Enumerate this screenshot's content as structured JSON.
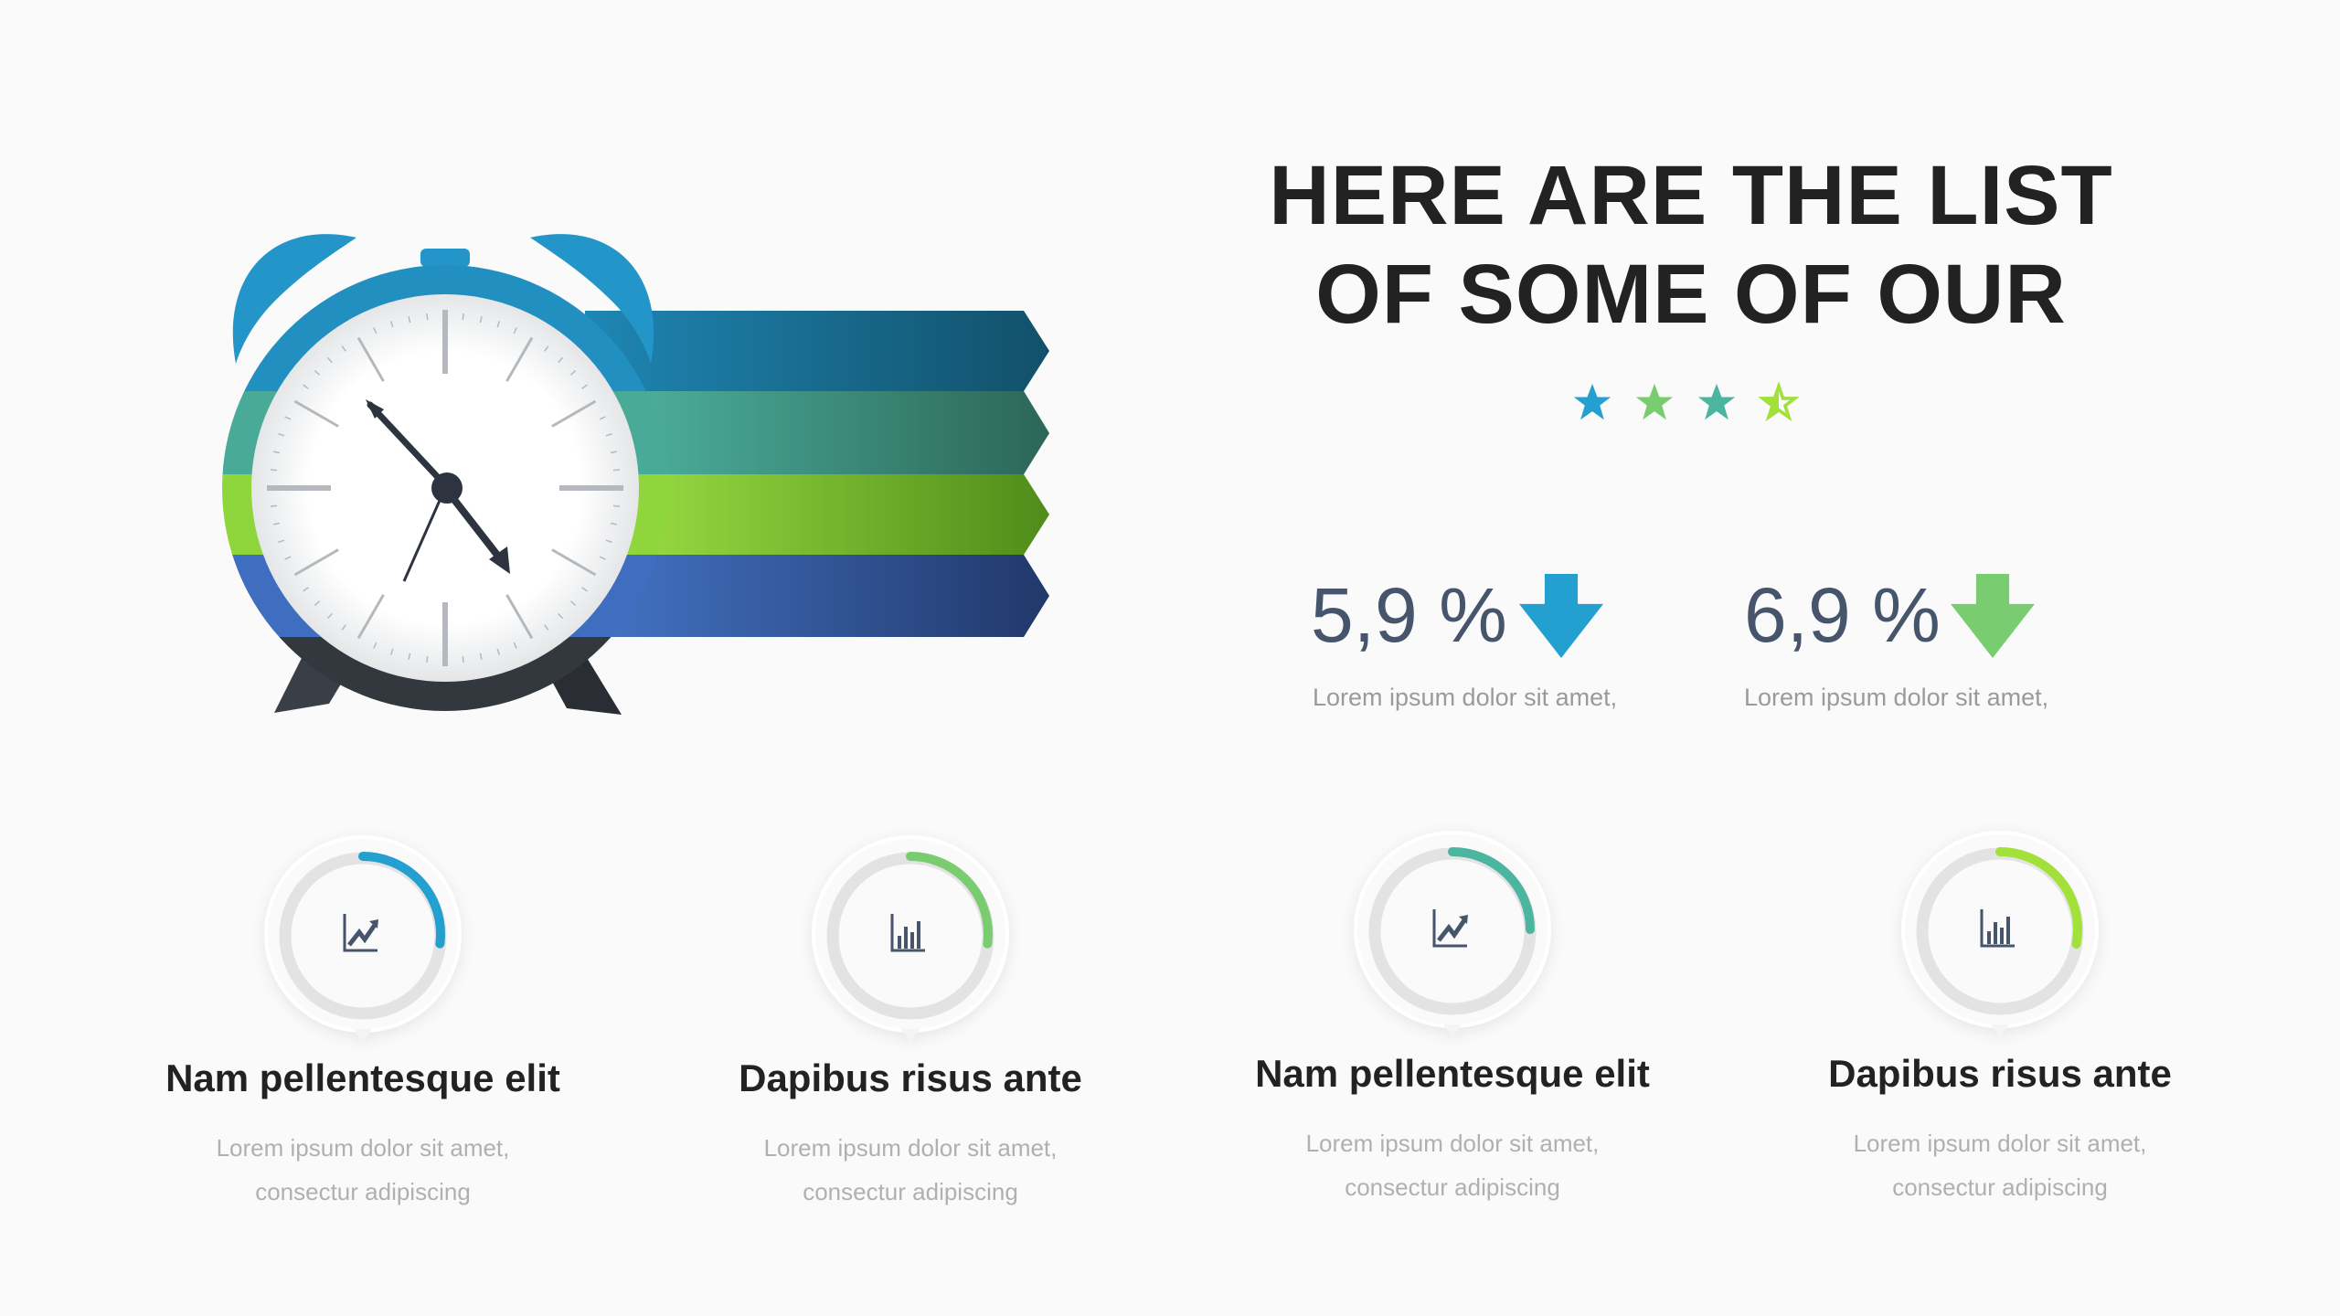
{
  "heading": {
    "line1": "HERE ARE THE LIST",
    "line2": "OF SOME OF OUR"
  },
  "rating": {
    "value": 3.5,
    "max": 4,
    "colors": [
      "#239fd0",
      "#7acc70",
      "#4bb5a0",
      "#a2e03a"
    ]
  },
  "stats": [
    {
      "value": "5,9 %",
      "caption": "Lorem ipsum dolor sit amet,",
      "icon": "arrow-down-icon",
      "color": "#239fd0"
    },
    {
      "value": "6,9 %",
      "caption": "Lorem ipsum dolor sit amet,",
      "icon": "arrow-down-icon",
      "color": "#7acc70"
    }
  ],
  "cards": [
    {
      "title": "Nam pellentesque elit",
      "desc1": "Lorem ipsum dolor sit amet,",
      "desc2": "consectur adipiscing",
      "icon": "trend-chart-icon",
      "progress": 27,
      "color": "#239fd0"
    },
    {
      "title": "Dapibus risus ante",
      "desc1": "Lorem ipsum dolor sit amet,",
      "desc2": "consectur adipiscing",
      "icon": "bar-chart-icon",
      "progress": 27,
      "color": "#7acc70"
    },
    {
      "title": "Nam pellentesque elit",
      "desc1": "Lorem ipsum dolor sit amet,",
      "desc2": "consectur adipiscing",
      "icon": "trend-chart-icon",
      "progress": 25,
      "color": "#4bb5a0"
    },
    {
      "title": "Dapibus risus ante",
      "desc1": "Lorem ipsum dolor sit amet,",
      "desc2": "consectur adipiscing",
      "icon": "bar-chart-icon",
      "progress": 28,
      "color": "#a2e03a"
    }
  ],
  "ribbon_colors": [
    "#1b6f8f",
    "#47a896",
    "#8fd63c",
    "#3a66b8"
  ],
  "clock": {
    "icon": "alarm-clock-icon",
    "bell_color": "#2395c8"
  }
}
